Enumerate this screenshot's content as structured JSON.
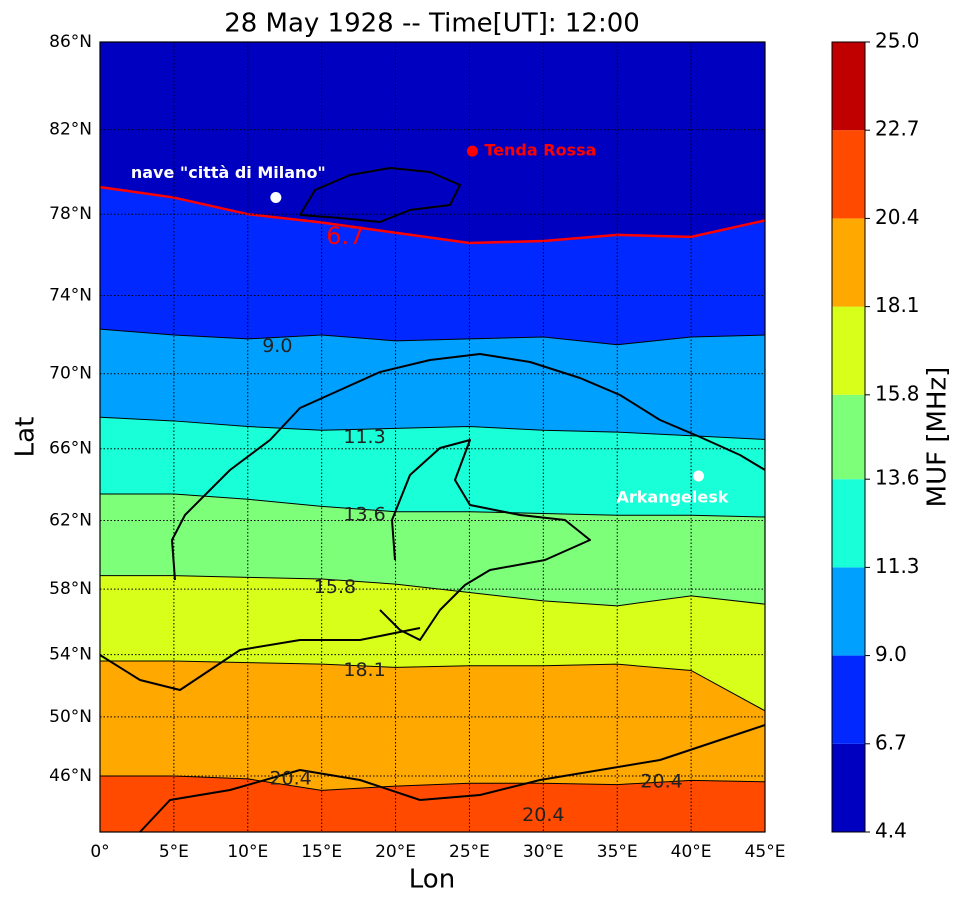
{
  "chart_data": {
    "type": "contour",
    "title": "28 May 1928 -- Time[UT]: 12:00",
    "xlabel": "Lon",
    "ylabel": "Lat",
    "xlim": [
      0,
      45
    ],
    "ylim": [
      42,
      86
    ],
    "xticks": [
      {
        "value": 0,
        "label": "0°"
      },
      {
        "value": 5,
        "label": "5°E"
      },
      {
        "value": 10,
        "label": "10°E"
      },
      {
        "value": 15,
        "label": "15°E"
      },
      {
        "value": 20,
        "label": "20°E"
      },
      {
        "value": 25,
        "label": "25°E"
      },
      {
        "value": 30,
        "label": "30°E"
      },
      {
        "value": 35,
        "label": "35°E"
      },
      {
        "value": 40,
        "label": "40°E"
      },
      {
        "value": 45,
        "label": "45°E"
      }
    ],
    "yticks": [
      {
        "value": 46,
        "label": "46°N"
      },
      {
        "value": 50,
        "label": "50°N"
      },
      {
        "value": 54,
        "label": "54°N"
      },
      {
        "value": 58,
        "label": "58°N"
      },
      {
        "value": 62,
        "label": "62°N"
      },
      {
        "value": 66,
        "label": "66°N"
      },
      {
        "value": 70,
        "label": "70°N"
      },
      {
        "value": 74,
        "label": "74°N"
      },
      {
        "value": 78,
        "label": "78°N"
      },
      {
        "value": 82,
        "label": "82°N"
      },
      {
        "value": 86,
        "label": "86°N"
      }
    ],
    "grid": true,
    "colors": [
      "#0000c0",
      "#0028ff",
      "#00a0ff",
      "#19ffd8",
      "#7dff7a",
      "#d8ff19",
      "#ffa800",
      "#ff4a00",
      "#c00000"
    ],
    "colorbar": {
      "label": "MUF [MHz]",
      "ticks": [
        4.4,
        6.7,
        {
          "value": 9,
          "label": "9.0"
        },
        11.3,
        13.6,
        15.8,
        18.1,
        20.4,
        22.7,
        {
          "value": 25,
          "label": "25.0"
        }
      ]
    },
    "x": [
      0,
      5,
      10,
      15,
      20,
      25,
      30,
      35,
      40,
      45
    ],
    "contours": [
      {
        "color": "#ff0000",
        "values": [
          79.3,
          78.8,
          78.0,
          77.6,
          77.1,
          76.6,
          76.7,
          77.0,
          76.9,
          77.7
        ]
      },
      {
        "color": "#000000",
        "values": [
          72.3,
          72.0,
          71.8,
          72.0,
          71.7,
          71.8,
          71.9,
          71.5,
          71.9,
          72.0
        ]
      },
      {
        "color": "#000000",
        "values": [
          67.7,
          67.5,
          67.2,
          67.0,
          67.1,
          67.2,
          67.0,
          66.9,
          66.7,
          66.5
        ]
      },
      {
        "color": "#000000",
        "values": [
          63.5,
          63.5,
          63.2,
          62.8,
          62.5,
          62.5,
          62.4,
          62.3,
          62.3,
          62.2
        ]
      },
      {
        "color": "#000000",
        "values": [
          58.8,
          58.8,
          58.7,
          58.6,
          58.3,
          57.8,
          57.3,
          57.0,
          57.6,
          57.1
        ]
      },
      {
        "color": "#000000",
        "values": [
          53.6,
          53.6,
          53.5,
          53.4,
          53.2,
          53.3,
          53.3,
          53.4,
          53.0,
          50.4
        ]
      },
      {
        "color": "#000000",
        "values": [
          46.0,
          46.0,
          45.8,
          45.0,
          45.3,
          45.5,
          45.5,
          45.4,
          45.7,
          45.6
        ]
      }
    ],
    "contour_labels": [
      {
        "text": "6.7",
        "lon": 16.6,
        "lat": 76.9,
        "color": "#ff0000"
      },
      {
        "text": "9.0",
        "lon": 12.0,
        "lat": 71.4,
        "color": "#222222"
      },
      {
        "text": "11.3",
        "lon": 17.9,
        "lat": 66.6,
        "color": "#222222"
      },
      {
        "text": "13.6",
        "lon": 17.9,
        "lat": 62.3,
        "color": "#222222"
      },
      {
        "text": "15.8",
        "lon": 15.9,
        "lat": 58.1,
        "color": "#222222"
      },
      {
        "text": "18.1",
        "lon": 17.9,
        "lat": 53.0,
        "color": "#222222"
      },
      {
        "text": "20.4",
        "lon": 12.9,
        "lat": 45.8,
        "color": "#222222"
      },
      {
        "text": "20.4",
        "lon": 38.0,
        "lat": 45.6,
        "color": "#222222"
      },
      {
        "text": "20.4",
        "lon": 30.0,
        "lat": 43.2,
        "color": "#222222"
      }
    ],
    "points": [
      {
        "name": "Tenda Rossa",
        "lon": 25.2,
        "lat": 81.0,
        "color": "#ff0000"
      },
      {
        "name": "nave \"città di Milano\"",
        "lon": 11.9,
        "lat": 78.8,
        "color": "#ffffff"
      },
      {
        "name": "Arkangelesk",
        "lon": 40.5,
        "lat": 64.5,
        "color": "#ffffff"
      }
    ]
  }
}
